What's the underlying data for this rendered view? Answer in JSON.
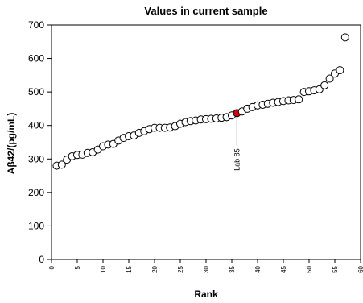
{
  "chart_data": {
    "type": "scatter",
    "title": "Values in current sample",
    "xlabel": "Rank",
    "ylabel": "Aβ42/(pg/mL)",
    "xlim": [
      0,
      60
    ],
    "ylim": [
      0,
      700
    ],
    "xticks": [
      "0",
      "5",
      "10",
      "15",
      "20",
      "25",
      "30",
      "35",
      "40",
      "45",
      "50",
      "55",
      "60"
    ],
    "yticks": [
      "0",
      "100",
      "200",
      "300",
      "400",
      "500",
      "600",
      "700"
    ],
    "grid": false,
    "point_fill": "#ffffff",
    "highlight_fill": "#dd0000",
    "highlight_annotation": "Lab 85",
    "highlight_rank": 36,
    "points": [
      {
        "x": 1,
        "y": 280
      },
      {
        "x": 2,
        "y": 283
      },
      {
        "x": 3,
        "y": 298
      },
      {
        "x": 4,
        "y": 308
      },
      {
        "x": 5,
        "y": 312
      },
      {
        "x": 6,
        "y": 313
      },
      {
        "x": 7,
        "y": 318
      },
      {
        "x": 8,
        "y": 320
      },
      {
        "x": 9,
        "y": 328
      },
      {
        "x": 10,
        "y": 338
      },
      {
        "x": 11,
        "y": 343
      },
      {
        "x": 12,
        "y": 345
      },
      {
        "x": 13,
        "y": 355
      },
      {
        "x": 14,
        "y": 363
      },
      {
        "x": 15,
        "y": 368
      },
      {
        "x": 16,
        "y": 370
      },
      {
        "x": 17,
        "y": 378
      },
      {
        "x": 18,
        "y": 383
      },
      {
        "x": 19,
        "y": 389
      },
      {
        "x": 20,
        "y": 393
      },
      {
        "x": 21,
        "y": 393
      },
      {
        "x": 22,
        "y": 393
      },
      {
        "x": 23,
        "y": 394
      },
      {
        "x": 24,
        "y": 398
      },
      {
        "x": 25,
        "y": 405
      },
      {
        "x": 26,
        "y": 410
      },
      {
        "x": 27,
        "y": 413
      },
      {
        "x": 28,
        "y": 415
      },
      {
        "x": 29,
        "y": 418
      },
      {
        "x": 30,
        "y": 419
      },
      {
        "x": 31,
        "y": 420
      },
      {
        "x": 32,
        "y": 421
      },
      {
        "x": 33,
        "y": 423
      },
      {
        "x": 34,
        "y": 425
      },
      {
        "x": 35,
        "y": 430
      },
      {
        "x": 36,
        "y": 437
      },
      {
        "x": 37,
        "y": 442
      },
      {
        "x": 38,
        "y": 450
      },
      {
        "x": 39,
        "y": 455
      },
      {
        "x": 40,
        "y": 460
      },
      {
        "x": 41,
        "y": 462
      },
      {
        "x": 42,
        "y": 465
      },
      {
        "x": 43,
        "y": 468
      },
      {
        "x": 44,
        "y": 470
      },
      {
        "x": 45,
        "y": 473
      },
      {
        "x": 46,
        "y": 475
      },
      {
        "x": 47,
        "y": 476
      },
      {
        "x": 48,
        "y": 478
      },
      {
        "x": 49,
        "y": 500
      },
      {
        "x": 50,
        "y": 502
      },
      {
        "x": 51,
        "y": 505
      },
      {
        "x": 52,
        "y": 508
      },
      {
        "x": 53,
        "y": 520
      },
      {
        "x": 54,
        "y": 540
      },
      {
        "x": 55,
        "y": 555
      },
      {
        "x": 56,
        "y": 565
      },
      {
        "x": 57,
        "y": 663
      }
    ]
  }
}
